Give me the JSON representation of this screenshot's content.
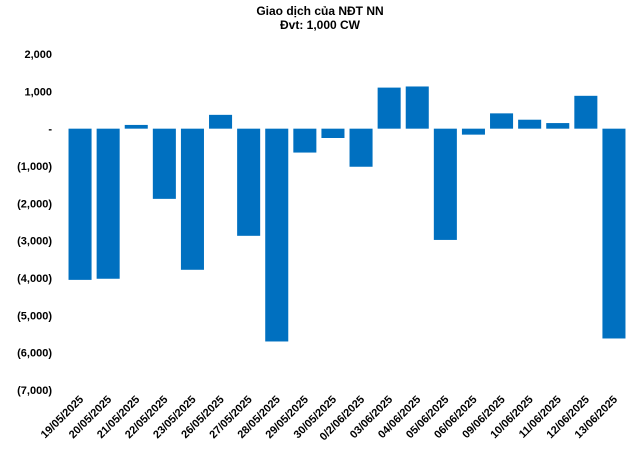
{
  "chart_data": {
    "type": "bar",
    "title": "Giao dịch của NĐT NN",
    "subtitle": "Đvt: 1,000 CW",
    "xlabel": "",
    "ylabel": "",
    "ylim": [
      -7000,
      2000
    ],
    "yticks": [
      2000,
      1000,
      0,
      -1000,
      -2000,
      -3000,
      -4000,
      -5000,
      -6000,
      -7000
    ],
    "ytick_labels": [
      "2,000",
      "1,000",
      "-",
      "(1,000)",
      "(2,000)",
      "(3,000)",
      "(4,000)",
      "(5,000)",
      "(6,000)",
      "(7,000)"
    ],
    "grid": false,
    "legend": "none",
    "bar_color": "#0070C0",
    "categories": [
      "19/05/2025",
      "20/05/2025",
      "21/05/2025",
      "22/05/2025",
      "23/05/2025",
      "26/05/2025",
      "27/05/2025",
      "28/05/2025",
      "29/05/2025",
      "30/05/2025",
      "02/06/2025",
      "03/06/2025",
      "04/06/2025",
      "05/06/2025",
      "06/06/2025",
      "09/06/2025",
      "10/06/2025",
      "11/06/2025",
      "12/06/2025",
      "13/06/2025"
    ],
    "category_labels": [
      "19/05/2025",
      "20/05/2025",
      "21/05/2025",
      "22/05/2025",
      "23/05/2025",
      "26/05/2025",
      "27/05/2025",
      "28/05/2025",
      "29/05/2025",
      "30/05/2025",
      "0/2/06/2025",
      "03/06/2025",
      "04/06/2025",
      "05/06/2025",
      "06/06/2025",
      "09/06/2025",
      "10/06/2025",
      "11/06/2025",
      "12/06/2025",
      "13/06/2025"
    ],
    "values": [
      -4050,
      -4020,
      100,
      -1880,
      -3780,
      370,
      -2870,
      -5700,
      -640,
      -250,
      -1020,
      1100,
      1130,
      -2980,
      -160,
      410,
      240,
      150,
      880,
      -5620
    ]
  }
}
